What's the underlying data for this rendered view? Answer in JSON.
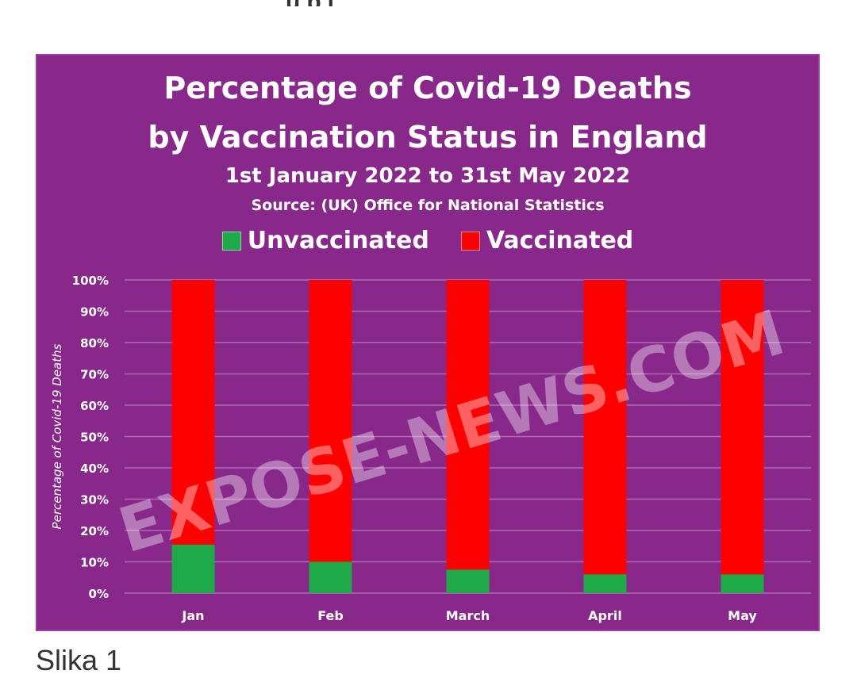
{
  "colors": {
    "background": "#87288a",
    "unvaccinated": "#1faa4a",
    "vaccinated": "#ff0000",
    "grid": "#b06ab4",
    "text": "#ffffff"
  },
  "chart_data": {
    "type": "bar",
    "stacked": true,
    "title_line1": "Percentage of Covid-19 Deaths",
    "title_line2": "by Vaccination Status in England",
    "subtitle": "1st January 2022 to 31st May 2022",
    "source": "Source:  (UK) Office for National Statistics",
    "ylabel": "Percentage of Covid-19 Deaths",
    "xlabel": "",
    "categories": [
      "Jan",
      "Feb",
      "March",
      "April",
      "May"
    ],
    "ylim": [
      0,
      100
    ],
    "yticks": [
      "0%",
      "10%",
      "20%",
      "30%",
      "40%",
      "50%",
      "60%",
      "70%",
      "80%",
      "90%",
      "100%"
    ],
    "grid": true,
    "legend_position": "top",
    "series": [
      {
        "name": "Unvaccinated",
        "values": [
          15.5,
          10,
          7.5,
          6,
          6
        ]
      },
      {
        "name": "Vaccinated",
        "values": [
          84.5,
          90,
          92.5,
          94,
          94
        ]
      }
    ]
  },
  "watermark": "EXPOSE-NEWS.COM",
  "caption": "Slika 1"
}
